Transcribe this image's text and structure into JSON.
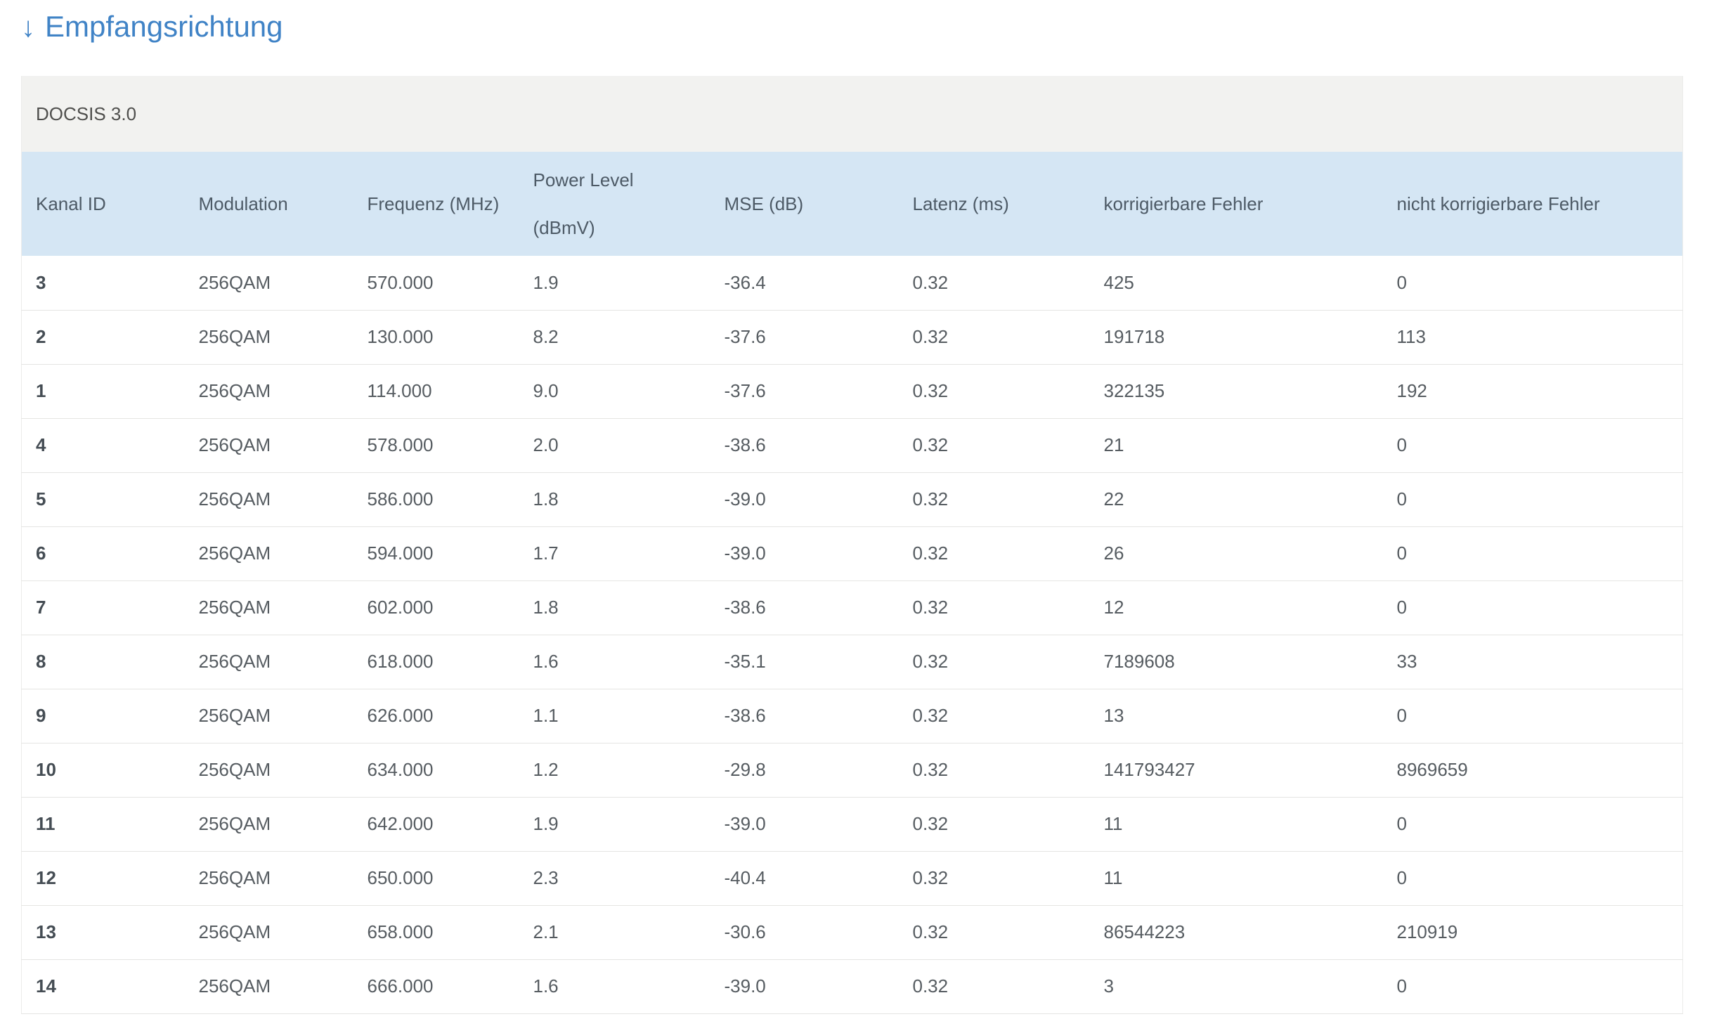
{
  "page": {
    "title_arrow": "↓",
    "title": "Empfangsrichtung"
  },
  "table": {
    "section_title": "DOCSIS 3.0",
    "columns": [
      "Kanal ID",
      "Modulation",
      "Frequenz (MHz)",
      "Power Level\n(dBmV)",
      "MSE (dB)",
      "Latenz (ms)",
      "korrigierbare Fehler",
      "nicht korrigierbare Fehler"
    ],
    "rows": [
      [
        "3",
        "256QAM",
        "570.000",
        "1.9",
        "-36.4",
        "0.32",
        "425",
        "0"
      ],
      [
        "2",
        "256QAM",
        "130.000",
        "8.2",
        "-37.6",
        "0.32",
        "191718",
        "113"
      ],
      [
        "1",
        "256QAM",
        "114.000",
        "9.0",
        "-37.6",
        "0.32",
        "322135",
        "192"
      ],
      [
        "4",
        "256QAM",
        "578.000",
        "2.0",
        "-38.6",
        "0.32",
        "21",
        "0"
      ],
      [
        "5",
        "256QAM",
        "586.000",
        "1.8",
        "-39.0",
        "0.32",
        "22",
        "0"
      ],
      [
        "6",
        "256QAM",
        "594.000",
        "1.7",
        "-39.0",
        "0.32",
        "26",
        "0"
      ],
      [
        "7",
        "256QAM",
        "602.000",
        "1.8",
        "-38.6",
        "0.32",
        "12",
        "0"
      ],
      [
        "8",
        "256QAM",
        "618.000",
        "1.6",
        "-35.1",
        "0.32",
        "7189608",
        "33"
      ],
      [
        "9",
        "256QAM",
        "626.000",
        "1.1",
        "-38.6",
        "0.32",
        "13",
        "0"
      ],
      [
        "10",
        "256QAM",
        "634.000",
        "1.2",
        "-29.8",
        "0.32",
        "141793427",
        "8969659"
      ],
      [
        "11",
        "256QAM",
        "642.000",
        "1.9",
        "-39.0",
        "0.32",
        "11",
        "0"
      ],
      [
        "12",
        "256QAM",
        "650.000",
        "2.3",
        "-40.4",
        "0.32",
        "11",
        "0"
      ],
      [
        "13",
        "256QAM",
        "658.000",
        "2.1",
        "-30.6",
        "0.32",
        "86544223",
        "210919"
      ],
      [
        "14",
        "256QAM",
        "666.000",
        "1.6",
        "-39.0",
        "0.32",
        "3",
        "0"
      ]
    ]
  },
  "colors": {
    "accent_blue": "#4083c6",
    "header_bg": "#d5e6f4",
    "section_bg": "#f2f2f0"
  }
}
